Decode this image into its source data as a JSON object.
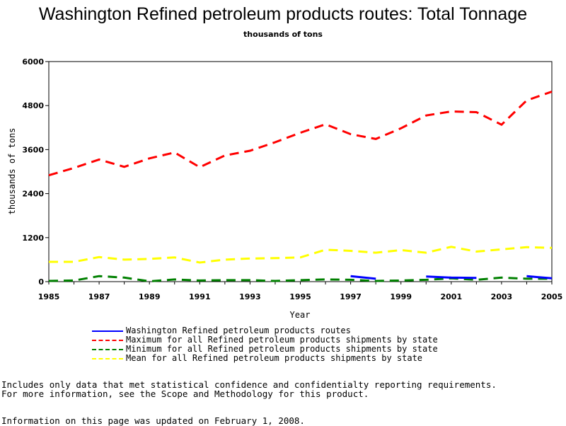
{
  "chart_data": {
    "type": "line",
    "title": "Washington Refined petroleum products routes: Total Tonnage",
    "subtitle": "thousands of tons",
    "xlabel": "Year",
    "ylabel": "thousands of tons",
    "xlim": [
      1985,
      2005
    ],
    "ylim": [
      0,
      6000
    ],
    "x_ticks": [
      "1985",
      "1987",
      "1989",
      "1991",
      "1993",
      "1995",
      "1997",
      "1999",
      "2001",
      "2003",
      "2005"
    ],
    "y_ticks": [
      "0",
      "1200",
      "2400",
      "3600",
      "4800",
      "6000"
    ],
    "x": [
      1985,
      1986,
      1987,
      1988,
      1989,
      1990,
      1991,
      1992,
      1993,
      1994,
      1995,
      1996,
      1997,
      1998,
      1999,
      2000,
      2001,
      2002,
      2003,
      2004,
      2005
    ],
    "series": [
      {
        "name": "Washington Refined petroleum products routes",
        "color": "#0000ff",
        "dash": "solid",
        "values": [
          null,
          null,
          null,
          null,
          null,
          null,
          null,
          null,
          null,
          null,
          null,
          null,
          150,
          80,
          null,
          140,
          110,
          100,
          null,
          150,
          90
        ]
      },
      {
        "name": "Maximum for all Refined petroleum products shipments by state",
        "color": "#ff0000",
        "dash": "dashed",
        "values": [
          2900,
          3100,
          3330,
          3130,
          3360,
          3520,
          3120,
          3440,
          3570,
          3800,
          4060,
          4290,
          4020,
          3890,
          4180,
          4530,
          4640,
          4620,
          4280,
          4940,
          5180
        ]
      },
      {
        "name": "Minimum for all Refined petroleum products shipments by state",
        "color": "#008000",
        "dash": "dashed",
        "values": [
          20,
          30,
          150,
          110,
          10,
          60,
          30,
          40,
          40,
          20,
          40,
          60,
          50,
          20,
          30,
          50,
          90,
          50,
          110,
          80,
          80
        ]
      },
      {
        "name": "Mean for all Refined petroleum products shipments by state",
        "color": "#ffff00",
        "dash": "dashed",
        "values": [
          540,
          540,
          670,
          600,
          620,
          660,
          520,
          600,
          630,
          640,
          660,
          870,
          840,
          790,
          860,
          790,
          950,
          820,
          880,
          940,
          920
        ]
      }
    ],
    "legend_placement": "bottom"
  },
  "notes": {
    "line1": "Includes only data that met statistical confidence and confidentialty reporting requirements.",
    "line2": "For more information, see the Scope and Methodology for this product.",
    "updated": "Information on this page was updated on February 1, 2008."
  }
}
